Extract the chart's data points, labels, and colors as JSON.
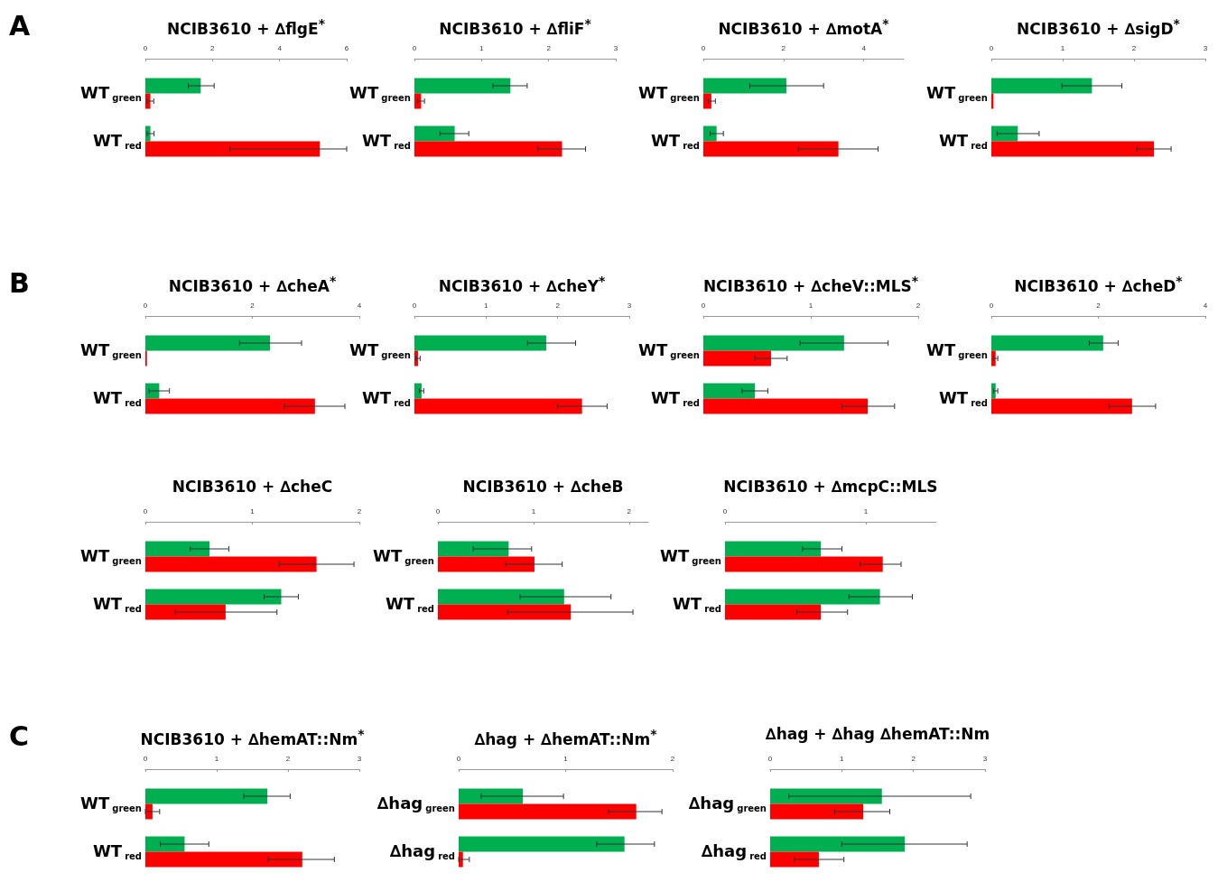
{
  "chart_data": [
    {
      "type": "bar",
      "orientation": "horizontal",
      "title": "NCIB3610 + ∆flgE$^{*}$",
      "annotations": [
        "A"
      ],
      "categories": [
        "WT$_{green}$",
        "WT$_{red}$"
      ],
      "xlim": [
        0,
        6
      ],
      "xticks": [
        0,
        2,
        4,
        6
      ],
      "series": [
        {
          "color": "#00b050",
          "values": [
            1.65,
            0.15
          ],
          "errors": [
            [
              1.28,
              2.05
            ],
            [
              0.05,
              0.26
            ]
          ]
        },
        {
          "color": "#ff0000",
          "values": [
            0.15,
            5.2
          ],
          "errors": [
            [
              0.05,
              0.25
            ],
            [
              2.52,
              6.0
            ]
          ]
        }
      ]
    },
    {
      "type": "bar",
      "orientation": "horizontal",
      "title": "NCIB3610 + ∆fliF$^{*}$",
      "categories": [
        "WT$_{green}$",
        "WT$_{red}$"
      ],
      "xlim": [
        0,
        3
      ],
      "xticks": [
        0,
        1,
        2,
        3
      ],
      "series": [
        {
          "color": "#00b050",
          "values": [
            1.43,
            0.6
          ],
          "errors": [
            [
              1.17,
              1.68
            ],
            [
              0.38,
              0.81
            ]
          ]
        },
        {
          "color": "#ff0000",
          "values": [
            0.1,
            2.2
          ],
          "errors": [
            [
              0.05,
              0.15
            ],
            [
              1.84,
              2.55
            ]
          ]
        }
      ]
    },
    {
      "type": "bar",
      "orientation": "horizontal",
      "title": "NCIB3610 + ∆motA$^{*}$",
      "categories": [
        "WT$_{green}$",
        "WT$_{red}$"
      ],
      "xlim": [
        0,
        5
      ],
      "xticks": [
        0,
        2,
        4
      ],
      "series": [
        {
          "color": "#00b050",
          "values": [
            2.07,
            0.33
          ],
          "errors": [
            [
              1.16,
              3.0
            ],
            [
              0.17,
              0.5
            ]
          ]
        },
        {
          "color": "#ff0000",
          "values": [
            0.2,
            3.37
          ],
          "errors": [
            [
              0.12,
              0.3
            ],
            [
              2.37,
              4.36
            ]
          ]
        }
      ]
    },
    {
      "type": "bar",
      "orientation": "horizontal",
      "title": "NCIB3610 + ∆sigD$^{*}$",
      "categories": [
        "WT$_{green}$",
        "WT$_{red}$"
      ],
      "xlim": [
        0,
        3
      ],
      "xticks": [
        0,
        1,
        2,
        3
      ],
      "series": [
        {
          "color": "#00b050",
          "values": [
            1.41,
            0.37
          ],
          "errors": [
            [
              0.99,
              1.83
            ],
            [
              0.08,
              0.67
            ]
          ]
        },
        {
          "color": "#ff0000",
          "values": [
            0.03,
            2.28
          ],
          "errors": [
            null,
            [
              2.04,
              2.52
            ]
          ]
        }
      ]
    },
    {
      "type": "bar",
      "orientation": "horizontal",
      "title": "NCIB3610 + ∆cheA$^{*}$",
      "annotations": [
        "B"
      ],
      "categories": [
        "WT$_{green}$",
        "WT$_{red}$"
      ],
      "xlim": [
        0,
        4
      ],
      "xticks": [
        0,
        2,
        4
      ],
      "series": [
        {
          "color": "#00b050",
          "values": [
            2.33,
            0.26
          ],
          "errors": [
            [
              1.76,
              2.92
            ],
            [
              0.07,
              0.45
            ]
          ]
        },
        {
          "color": "#ff0000",
          "values": [
            0.03,
            3.17
          ],
          "errors": [
            null,
            [
              2.6,
              3.73
            ]
          ]
        }
      ]
    },
    {
      "type": "bar",
      "orientation": "horizontal",
      "title": "NCIB3610 + ∆cheY$^{*}$",
      "categories": [
        "WT$_{green}$",
        "WT$_{red}$"
      ],
      "xlim": [
        0,
        3
      ],
      "xticks": [
        0,
        1,
        2,
        3
      ],
      "series": [
        {
          "color": "#00b050",
          "values": [
            1.84,
            0.1
          ],
          "errors": [
            [
              1.58,
              2.25
            ],
            [
              0.07,
              0.13
            ]
          ]
        },
        {
          "color": "#ff0000",
          "values": [
            0.05,
            2.34
          ],
          "errors": [
            [
              0.02,
              0.08
            ],
            [
              2.0,
              2.69
            ]
          ]
        }
      ]
    },
    {
      "type": "bar",
      "orientation": "horizontal",
      "title": "NCIB3610 + ∆cheV::MLS$^{*}$",
      "categories": [
        "WT$_{green}$",
        "WT$_{red}$"
      ],
      "xlim": [
        0,
        2
      ],
      "xticks": [
        0,
        1,
        2
      ],
      "series": [
        {
          "color": "#00b050",
          "values": [
            1.31,
            0.48
          ],
          "errors": [
            [
              0.9,
              1.72
            ],
            [
              0.36,
              0.6
            ]
          ]
        },
        {
          "color": "#ff0000",
          "values": [
            0.63,
            1.53
          ],
          "errors": [
            [
              0.48,
              0.78
            ],
            [
              1.29,
              1.78
            ]
          ]
        }
      ]
    },
    {
      "type": "bar",
      "orientation": "horizontal",
      "title": "NCIB3610 + ∆cheD$^{*}$",
      "categories": [
        "WT$_{green}$",
        "WT$_{red}$"
      ],
      "xlim": [
        0,
        4
      ],
      "xticks": [
        0,
        2,
        4
      ],
      "series": [
        {
          "color": "#00b050",
          "values": [
            2.09,
            0.08
          ],
          "errors": [
            [
              1.83,
              2.37
            ],
            [
              0.04,
              0.12
            ]
          ]
        },
        {
          "color": "#ff0000",
          "values": [
            0.08,
            2.63
          ],
          "errors": [
            [
              0.04,
              0.12
            ],
            [
              2.2,
              3.07
            ]
          ]
        }
      ]
    },
    {
      "type": "bar",
      "orientation": "horizontal",
      "title": "NCIB3610 + ∆cheC",
      "categories": [
        "WT$_{green}$",
        "WT$_{red}$"
      ],
      "xlim": [
        0,
        2
      ],
      "xticks": [
        0,
        1,
        2
      ],
      "series": [
        {
          "color": "#00b050",
          "values": [
            0.6,
            1.27
          ],
          "errors": [
            [
              0.42,
              0.78
            ],
            [
              1.11,
              1.43
            ]
          ]
        },
        {
          "color": "#ff0000",
          "values": [
            1.6,
            0.75
          ],
          "errors": [
            [
              1.25,
              1.95
            ],
            [
              0.28,
              1.23
            ]
          ]
        }
      ]
    },
    {
      "type": "bar",
      "orientation": "horizontal",
      "title": "NCIB3610 + ∆cheB",
      "categories": [
        "WT$_{green}$",
        "WT$_{red}$"
      ],
      "xlim": [
        0,
        2.2
      ],
      "xticks": [
        0,
        1,
        2
      ],
      "series": [
        {
          "color": "#00b050",
          "values": [
            0.74,
            1.32
          ],
          "errors": [
            [
              0.37,
              0.98
            ],
            [
              0.86,
              1.81
            ]
          ]
        },
        {
          "color": "#ff0000",
          "values": [
            1.01,
            1.39
          ],
          "errors": [
            [
              0.71,
              1.3
            ],
            [
              0.73,
              2.04
            ]
          ]
        }
      ]
    },
    {
      "type": "bar",
      "orientation": "horizontal",
      "title": "NCIB3610 + ∆mcpC::MLS",
      "categories": [
        "WT$_{green}$",
        "WT$_{red}$"
      ],
      "xlim": [
        0,
        1.5
      ],
      "xticks": [
        0,
        1
      ],
      "series": [
        {
          "color": "#00b050",
          "values": [
            0.68,
            1.1
          ],
          "errors": [
            [
              0.55,
              0.83
            ],
            [
              0.88,
              1.33
            ]
          ]
        },
        {
          "color": "#ff0000",
          "values": [
            1.12,
            0.68
          ],
          "errors": [
            [
              0.96,
              1.25
            ],
            [
              0.51,
              0.87
            ]
          ]
        }
      ]
    },
    {
      "type": "bar",
      "orientation": "horizontal",
      "title": "NCIB3610 + ∆hemAT::Nm$^{*}$",
      "annotations": [
        "C"
      ],
      "categories": [
        "WT$_{green}$",
        "WT$_{red}$"
      ],
      "xlim": [
        0,
        3
      ],
      "xticks": [
        0,
        1,
        2,
        3
      ],
      "series": [
        {
          "color": "#00b050",
          "values": [
            1.71,
            0.55
          ],
          "errors": [
            [
              1.38,
              2.03
            ],
            [
              0.21,
              0.89
            ]
          ]
        },
        {
          "color": "#ff0000",
          "values": [
            0.1,
            2.2
          ],
          "errors": [
            [
              0.0,
              0.2
            ],
            [
              1.72,
              2.65
            ]
          ]
        }
      ]
    },
    {
      "type": "bar",
      "orientation": "horizontal",
      "title": "∆hag + ∆hemAT::Nm$^{*}$",
      "categories": [
        "∆hag$_{green}$",
        "∆hag$_{red}$"
      ],
      "xlim": [
        0,
        2
      ],
      "xticks": [
        0,
        1,
        2
      ],
      "series": [
        {
          "color": "#00b050",
          "values": [
            0.6,
            1.55
          ],
          "errors": [
            [
              0.21,
              0.98
            ],
            [
              1.29,
              1.83
            ]
          ]
        },
        {
          "color": "#ff0000",
          "values": [
            1.66,
            0.04
          ],
          "errors": [
            [
              1.4,
              1.9
            ],
            [
              0.0,
              0.1
            ]
          ]
        }
      ]
    },
    {
      "type": "bar",
      "orientation": "horizontal",
      "title": "∆hag + ∆hag ∆hemAT::Nm",
      "categories": [
        "∆hag$_{green}$",
        "∆hag$_{red}$"
      ],
      "xlim": [
        0,
        3
      ],
      "xticks": [
        0,
        1,
        2,
        3
      ],
      "series": [
        {
          "color": "#00b050",
          "values": [
            1.56,
            1.88
          ],
          "errors": [
            [
              0.26,
              2.8
            ],
            [
              1.0,
              2.75
            ]
          ]
        },
        {
          "color": "#ff0000",
          "values": [
            1.3,
            0.68
          ],
          "errors": [
            [
              0.9,
              1.67
            ],
            [
              0.34,
              1.03
            ]
          ]
        }
      ]
    }
  ]
}
